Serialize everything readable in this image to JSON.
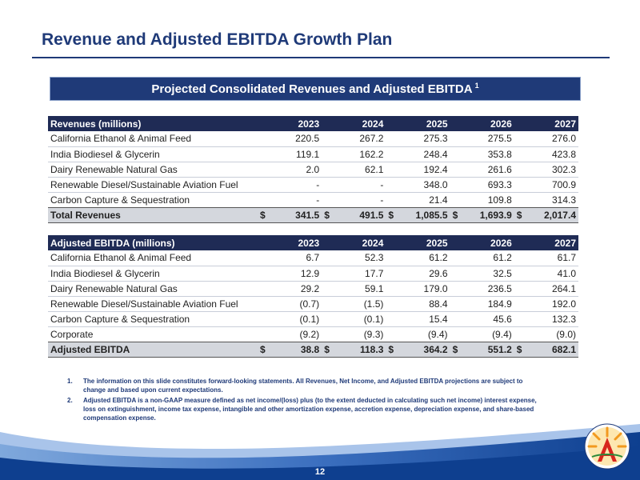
{
  "slide": {
    "title": "Revenue and Adjusted EBITDA Growth Plan",
    "banner_text": "Projected Consolidated Revenues and Adjusted EBITDA",
    "banner_superscript": "1",
    "page_number": "12"
  },
  "revenues": {
    "header": "Revenues (millions)",
    "years": [
      "2023",
      "2024",
      "2025",
      "2026",
      "2027"
    ],
    "rows": [
      {
        "label": "California Ethanol & Animal Feed",
        "values": [
          "220.5",
          "267.2",
          "275.3",
          "275.5",
          "276.0"
        ]
      },
      {
        "label": "India Biodiesel & Glycerin",
        "values": [
          "119.1",
          "162.2",
          "248.4",
          "353.8",
          "423.8"
        ]
      },
      {
        "label": "Dairy Renewable Natural Gas",
        "values": [
          "2.0",
          "62.1",
          "192.4",
          "261.6",
          "302.3"
        ]
      },
      {
        "label": "Renewable Diesel/Sustainable Aviation Fuel",
        "values": [
          "-",
          "-",
          "348.0",
          "693.3",
          "700.9"
        ]
      },
      {
        "label": "Carbon Capture & Sequestration",
        "values": [
          "-",
          "-",
          "21.4",
          "109.8",
          "314.3"
        ]
      }
    ],
    "total": {
      "label": "Total Revenues",
      "currency": "$",
      "values": [
        "341.5",
        "491.5",
        "1,085.5",
        "1,693.9",
        "2,017.4"
      ]
    }
  },
  "ebitda": {
    "header": "Adjusted EBITDA (millions)",
    "years": [
      "2023",
      "2024",
      "2025",
      "2026",
      "2027"
    ],
    "rows": [
      {
        "label": "California Ethanol & Animal Feed",
        "values": [
          "6.7",
          "52.3",
          "61.2",
          "61.2",
          "61.7"
        ]
      },
      {
        "label": "India Biodiesel & Glycerin",
        "values": [
          "12.9",
          "17.7",
          "29.6",
          "32.5",
          "41.0"
        ]
      },
      {
        "label": "Dairy Renewable Natural Gas",
        "values": [
          "29.2",
          "59.1",
          "179.0",
          "236.5",
          "264.1"
        ]
      },
      {
        "label": "Renewable Diesel/Sustainable Aviation Fuel",
        "values": [
          "(0.7)",
          "(1.5)",
          "88.4",
          "184.9",
          "192.0"
        ]
      },
      {
        "label": "Carbon Capture & Sequestration",
        "values": [
          "(0.1)",
          "(0.1)",
          "15.4",
          "45.6",
          "132.3"
        ]
      },
      {
        "label": "Corporate",
        "values": [
          "(9.2)",
          "(9.3)",
          "(9.4)",
          "(9.4)",
          "(9.0)"
        ]
      }
    ],
    "total": {
      "label": "Adjusted EBITDA",
      "currency": "$",
      "values": [
        "38.8",
        "118.3",
        "364.2",
        "551.2",
        "682.1"
      ]
    }
  },
  "footnotes": [
    {
      "number": "1.",
      "text": "The information on this slide constitutes forward-looking statements. All Revenues, Net Income, and Adjusted EBITDA projections are subject to change and based upon current expectations."
    },
    {
      "number": "2.",
      "text": "Adjusted EBITDA is a non-GAAP measure defined as net income/(loss) plus (to the extent deducted in calculating such net income) interest expense, loss on extinguishment, income tax expense, intangible and other amortization expense, accretion expense, depreciation expense, and share-based compensation expense."
    }
  ],
  "colors": {
    "brand_navy": "#1f3a78",
    "header_navy": "#1f2b55",
    "total_row_gray": "#d4d7dd",
    "footer_blue": "#0e3f8f"
  },
  "icons": {
    "logo": "aemetis-sun-logo"
  }
}
